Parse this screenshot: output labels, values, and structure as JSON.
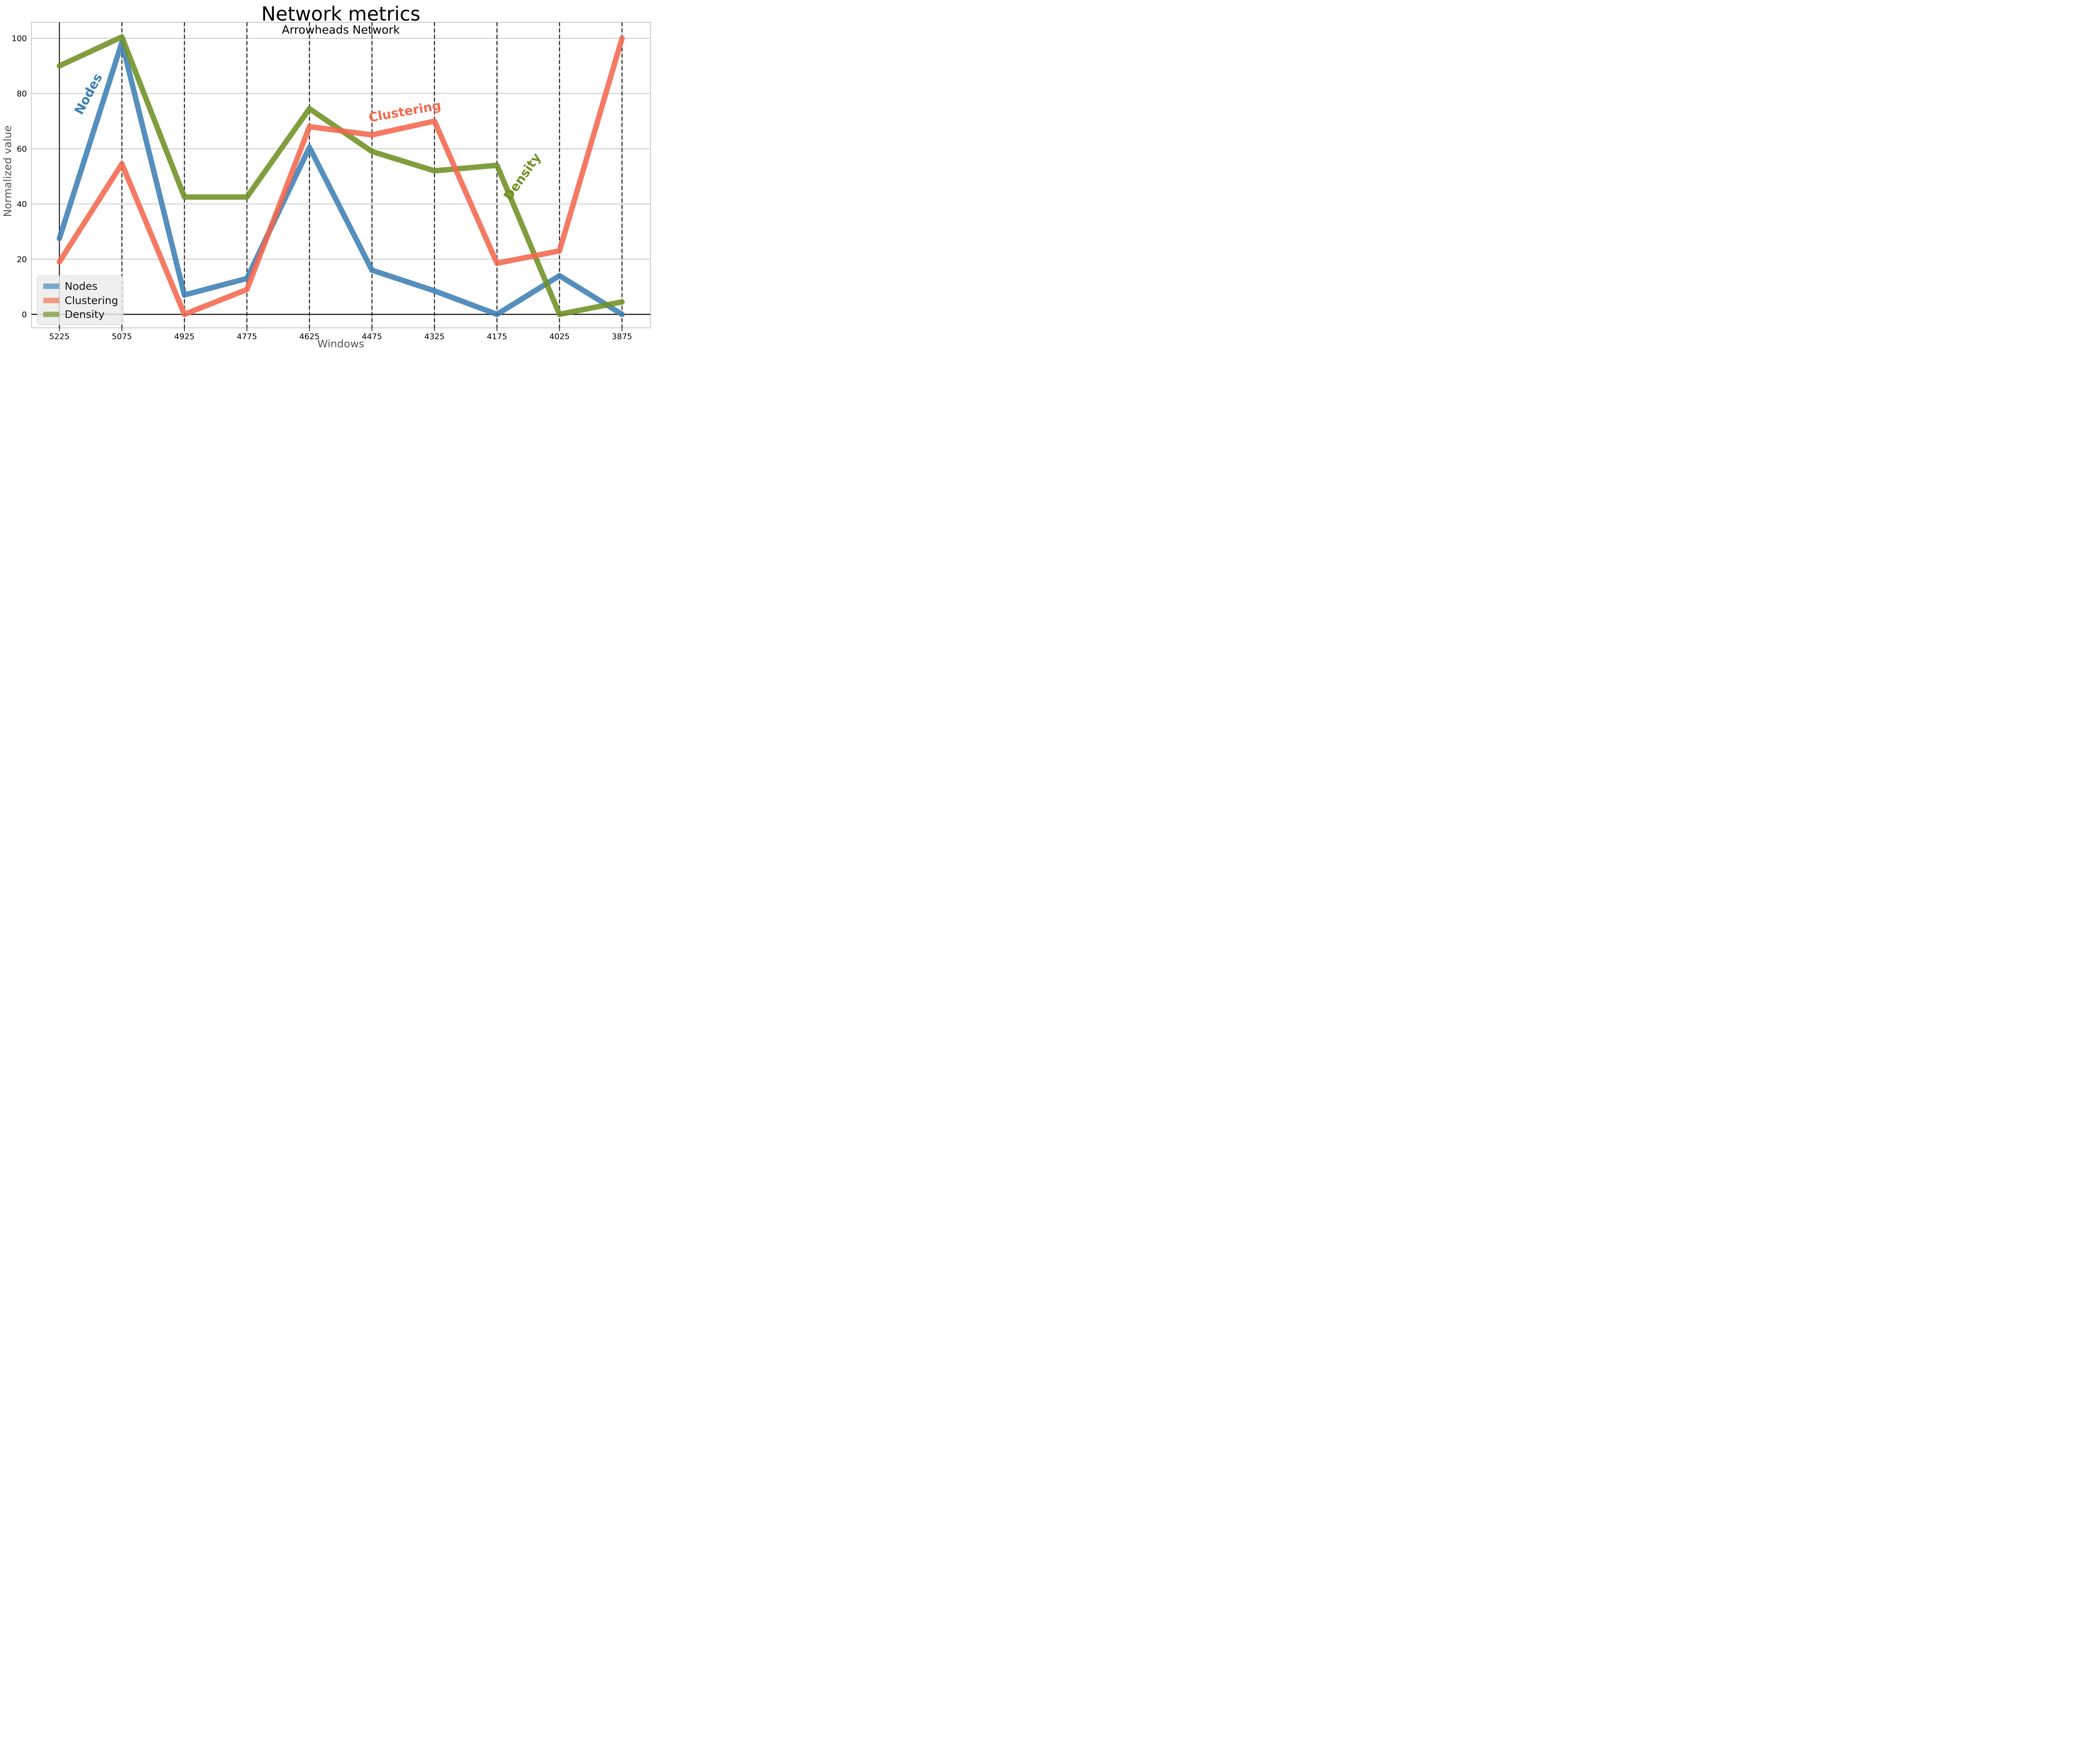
{
  "header": {
    "title": "Network metrics",
    "subtitle": "Arrowheads Network"
  },
  "chart_data": {
    "type": "line",
    "title": "Network metrics",
    "subtitle": "Arrowheads Network",
    "xlabel": "Windows",
    "ylabel": "Normalized value",
    "categories": [
      "5225",
      "5075",
      "4925",
      "4775",
      "4625",
      "4475",
      "4325",
      "4175",
      "4025",
      "3875"
    ],
    "ylim": [
      0,
      100
    ],
    "yticks": [
      0,
      20,
      40,
      60,
      80,
      100
    ],
    "grid": {
      "horizontal": true,
      "vertical_dashed_at_ticks": true,
      "first_vline_solid": true
    },
    "colors": {
      "grid": "#c9c9c9",
      "vline_dash": "#1a1a1a",
      "spine": "#cccccc",
      "zero_line": "#1a1a1a",
      "axis_label": "#555555",
      "tick_label": "#000000"
    },
    "series": [
      {
        "name": "Nodes",
        "color": "#3d80b4",
        "values": [
          27.5,
          98.5,
          7,
          13,
          60.5,
          16,
          8.5,
          0,
          14,
          0
        ]
      },
      {
        "name": "Clustering",
        "color": "#f4684e",
        "values": [
          19,
          54.5,
          0,
          9,
          68,
          65,
          70,
          18.5,
          23,
          100
        ]
      },
      {
        "name": "Density",
        "color": "#6f9124",
        "values": [
          90,
          100.5,
          42.5,
          42.5,
          74.5,
          59,
          52,
          54,
          0,
          4.5
        ]
      }
    ],
    "draw_order": [
      0,
      2,
      1
    ],
    "legend": {
      "position": "lower left",
      "entries": [
        "Nodes",
        "Clustering",
        "Density"
      ]
    },
    "annotations": [
      {
        "text": "Nodes",
        "series": "Nodes",
        "x_index": 0.47,
        "value": 79.8,
        "rotation": -62
      },
      {
        "text": "Clustering",
        "series": "Clustering",
        "x_index": 5.53,
        "value": 73.4,
        "rotation": -10
      },
      {
        "text": "Density",
        "series": "Density",
        "x_index": 7.41,
        "value": 49.8,
        "rotation": -55
      }
    ]
  }
}
